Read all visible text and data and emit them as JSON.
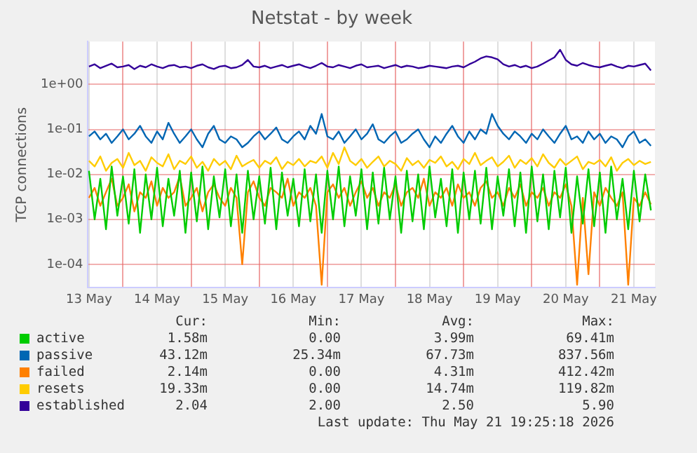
{
  "chart_data": {
    "type": "line",
    "title": "Netstat - by week",
    "ylabel": "TCP connections",
    "log": "y",
    "grid": true,
    "legend": "bottom",
    "marker": "none",
    "line_style": "solid",
    "xlim": [
      "--05-13T11:25",
      "--05-21T19:25"
    ],
    "xticks": [
      {
        "value": "--05-13T12:00",
        "label": "13 May"
      },
      {
        "value": "--05-14T00:00",
        "label": null
      },
      {
        "value": "--05-14T12:00",
        "label": "14 May"
      },
      {
        "value": "--05-15T00:00",
        "label": null
      },
      {
        "value": "--05-15T12:00",
        "label": "15 May"
      },
      {
        "value": "--05-16T00:00",
        "label": null
      },
      {
        "value": "--05-16T12:00",
        "label": "16 May"
      },
      {
        "value": "--05-17T00:00",
        "label": null
      },
      {
        "value": "--05-17T12:00",
        "label": "17 May"
      },
      {
        "value": "--05-18T00:00",
        "label": null
      },
      {
        "value": "--05-18T12:00",
        "label": "18 May"
      },
      {
        "value": "--05-19T00:00",
        "label": null
      },
      {
        "value": "--05-19T12:00",
        "label": "19 May"
      },
      {
        "value": "--05-20T00:00",
        "label": null
      },
      {
        "value": "--05-20T12:00",
        "label": "20 May"
      },
      {
        "value": "--05-21T00:00",
        "label": null
      },
      {
        "value": "--05-21T12:00",
        "label": "21 May"
      }
    ],
    "ylim": [
      3e-05,
      9
    ],
    "yticks": [
      {
        "value": 0.0001,
        "label": "1e-04"
      },
      {
        "value": 0.001,
        "label": "1e-03"
      },
      {
        "value": 0.01,
        "label": "1e-02"
      },
      {
        "value": 0.1,
        "label": "1e-01"
      },
      {
        "value": 1,
        "label": "1e+00"
      }
    ],
    "x": [
      "--05-13T12:00",
      "--05-13T14:00",
      "--05-13T16:00",
      "--05-13T18:00",
      "--05-13T20:00",
      "--05-13T22:00",
      "--05-14T00:00",
      "--05-14T02:00",
      "--05-14T04:00",
      "--05-14T06:00",
      "--05-14T08:00",
      "--05-14T10:00",
      "--05-14T12:00",
      "--05-14T14:00",
      "--05-14T16:00",
      "--05-14T18:00",
      "--05-14T20:00",
      "--05-14T22:00",
      "--05-15T00:00",
      "--05-15T02:00",
      "--05-15T04:00",
      "--05-15T06:00",
      "--05-15T08:00",
      "--05-15T10:00",
      "--05-15T12:00",
      "--05-15T14:00",
      "--05-15T16:00",
      "--05-15T18:00",
      "--05-15T20:00",
      "--05-15T22:00",
      "--05-16T00:00",
      "--05-16T02:00",
      "--05-16T04:00",
      "--05-16T06:00",
      "--05-16T08:00",
      "--05-16T10:00",
      "--05-16T12:00",
      "--05-16T14:00",
      "--05-16T16:00",
      "--05-16T18:00",
      "--05-16T20:00",
      "--05-16T22:00",
      "--05-17T00:00",
      "--05-17T02:00",
      "--05-17T04:00",
      "--05-17T06:00",
      "--05-17T08:00",
      "--05-17T10:00",
      "--05-17T12:00",
      "--05-17T14:00",
      "--05-17T16:00",
      "--05-17T18:00",
      "--05-17T20:00",
      "--05-17T22:00",
      "--05-18T00:00",
      "--05-18T02:00",
      "--05-18T04:00",
      "--05-18T06:00",
      "--05-18T08:00",
      "--05-18T10:00",
      "--05-18T12:00",
      "--05-18T14:00",
      "--05-18T16:00",
      "--05-18T18:00",
      "--05-18T20:00",
      "--05-18T22:00",
      "--05-19T00:00",
      "--05-19T02:00",
      "--05-19T04:00",
      "--05-19T06:00",
      "--05-19T08:00",
      "--05-19T10:00",
      "--05-19T12:00",
      "--05-19T14:00",
      "--05-19T16:00",
      "--05-19T18:00",
      "--05-19T20:00",
      "--05-19T22:00",
      "--05-20T00:00",
      "--05-20T02:00",
      "--05-20T04:00",
      "--05-20T06:00",
      "--05-20T08:00",
      "--05-20T10:00",
      "--05-20T12:00",
      "--05-20T14:00",
      "--05-20T16:00",
      "--05-20T18:00",
      "--05-20T20:00",
      "--05-20T22:00",
      "--05-21T00:00",
      "--05-21T02:00",
      "--05-21T04:00",
      "--05-21T06:00",
      "--05-21T08:00",
      "--05-21T10:00",
      "--05-21T12:00",
      "--05-21T14:00",
      "--05-21T16:00",
      "--05-21T18:00"
    ],
    "series": [
      {
        "name": "active",
        "color": "#00cc00",
        "values": [
          0.012,
          0.001,
          0.008,
          0.0006,
          0.015,
          0.0012,
          0.009,
          0.0008,
          0.013,
          0.0005,
          0.01,
          0.001,
          0.014,
          0.0007,
          0.008,
          0.0012,
          0.012,
          0.0005,
          0.011,
          0.0009,
          0.015,
          0.0006,
          0.009,
          0.0011,
          0.013,
          0.0007,
          0.01,
          0.0005,
          0.012,
          0.001,
          0.009,
          0.0008,
          0.014,
          0.0006,
          0.011,
          0.0012,
          0.008,
          0.0007,
          0.013,
          0.0009,
          0.01,
          0.0005,
          0.012,
          0.001,
          0.015,
          0.0007,
          0.009,
          0.0012,
          0.013,
          0.0006,
          0.011,
          0.0008,
          0.014,
          0.001,
          0.009,
          0.0005,
          0.012,
          0.0009,
          0.01,
          0.0006,
          0.015,
          0.0011,
          0.008,
          0.0007,
          0.013,
          0.0005,
          0.011,
          0.001,
          0.012,
          0.0008,
          0.014,
          0.0006,
          0.009,
          0.0012,
          0.013,
          0.0007,
          0.011,
          0.0005,
          0.015,
          0.0009,
          0.01,
          0.0006,
          0.012,
          0.0011,
          0.014,
          0.0005,
          0.009,
          0.0008,
          0.013,
          0.0007,
          0.011,
          0.0005,
          0.015,
          0.001,
          0.008,
          0.0006,
          0.012,
          0.0009,
          0.01,
          0.00158
        ]
      },
      {
        "name": "passive",
        "color": "#0066b3",
        "values": [
          0.07,
          0.09,
          0.06,
          0.08,
          0.05,
          0.07,
          0.1,
          0.06,
          0.08,
          0.12,
          0.07,
          0.05,
          0.09,
          0.06,
          0.14,
          0.08,
          0.05,
          0.07,
          0.1,
          0.06,
          0.04,
          0.08,
          0.12,
          0.06,
          0.05,
          0.07,
          0.06,
          0.04,
          0.05,
          0.07,
          0.09,
          0.06,
          0.08,
          0.11,
          0.06,
          0.05,
          0.07,
          0.09,
          0.06,
          0.12,
          0.08,
          0.22,
          0.07,
          0.06,
          0.09,
          0.05,
          0.07,
          0.1,
          0.06,
          0.08,
          0.13,
          0.06,
          0.05,
          0.07,
          0.09,
          0.05,
          0.06,
          0.08,
          0.1,
          0.06,
          0.04,
          0.07,
          0.05,
          0.08,
          0.12,
          0.07,
          0.05,
          0.09,
          0.06,
          0.1,
          0.08,
          0.22,
          0.12,
          0.08,
          0.06,
          0.09,
          0.07,
          0.05,
          0.08,
          0.06,
          0.1,
          0.07,
          0.05,
          0.08,
          0.12,
          0.06,
          0.07,
          0.05,
          0.09,
          0.06,
          0.08,
          0.05,
          0.07,
          0.06,
          0.04,
          0.07,
          0.09,
          0.05,
          0.06,
          0.043
        ]
      },
      {
        "name": "failed",
        "color": "#ff8000",
        "values": [
          0.003,
          0.005,
          0.002,
          0.004,
          0.008,
          0.002,
          0.003,
          0.006,
          0.0015,
          0.004,
          0.003,
          0.007,
          0.002,
          0.005,
          0.003,
          0.004,
          0.009,
          0.002,
          0.003,
          0.005,
          0.0015,
          0.004,
          0.006,
          0.003,
          0.002,
          0.005,
          0.003,
          0.0001,
          0.004,
          0.007,
          0.003,
          0.002,
          0.005,
          0.004,
          0.003,
          0.008,
          0.002,
          0.004,
          0.003,
          0.005,
          0.002,
          3.5e-05,
          0.004,
          0.006,
          0.003,
          0.005,
          0.002,
          0.004,
          0.007,
          0.003,
          0.005,
          0.002,
          0.004,
          0.003,
          0.006,
          0.002,
          0.004,
          0.005,
          0.003,
          0.008,
          0.002,
          0.004,
          0.003,
          0.005,
          0.002,
          0.006,
          0.003,
          0.004,
          0.002,
          0.005,
          0.007,
          0.003,
          0.004,
          0.002,
          0.005,
          0.003,
          0.006,
          0.002,
          0.004,
          0.003,
          0.005,
          0.002,
          0.004,
          0.003,
          0.006,
          0.002,
          3.5e-05,
          0.003,
          6e-05,
          0.004,
          0.002,
          0.005,
          0.003,
          0.002,
          0.004,
          3.5e-05,
          0.003,
          0.002,
          0.004,
          0.00214
        ]
      },
      {
        "name": "resets",
        "color": "#ffcc00",
        "values": [
          0.02,
          0.015,
          0.025,
          0.012,
          0.018,
          0.022,
          0.014,
          0.03,
          0.016,
          0.02,
          0.012,
          0.024,
          0.018,
          0.015,
          0.028,
          0.013,
          0.02,
          0.017,
          0.025,
          0.014,
          0.019,
          0.012,
          0.022,
          0.016,
          0.02,
          0.013,
          0.026,
          0.015,
          0.018,
          0.021,
          0.014,
          0.02,
          0.017,
          0.024,
          0.013,
          0.019,
          0.016,
          0.022,
          0.015,
          0.02,
          0.018,
          0.025,
          0.014,
          0.03,
          0.017,
          0.04,
          0.02,
          0.016,
          0.022,
          0.014,
          0.019,
          0.025,
          0.015,
          0.02,
          0.017,
          0.012,
          0.023,
          0.016,
          0.02,
          0.014,
          0.021,
          0.018,
          0.025,
          0.015,
          0.019,
          0.013,
          0.022,
          0.017,
          0.03,
          0.016,
          0.02,
          0.024,
          0.015,
          0.019,
          0.026,
          0.014,
          0.021,
          0.017,
          0.023,
          0.015,
          0.028,
          0.018,
          0.014,
          0.022,
          0.016,
          0.02,
          0.025,
          0.013,
          0.019,
          0.017,
          0.021,
          0.015,
          0.024,
          0.012,
          0.018,
          0.022,
          0.016,
          0.02,
          0.017,
          0.019
        ]
      },
      {
        "name": "established",
        "color": "#330099",
        "values": [
          2.5,
          2.8,
          2.3,
          2.6,
          2.9,
          2.4,
          2.5,
          2.7,
          2.2,
          2.6,
          2.4,
          2.8,
          2.5,
          2.3,
          2.6,
          2.7,
          2.4,
          2.5,
          2.3,
          2.6,
          2.8,
          2.4,
          2.2,
          2.5,
          2.6,
          2.3,
          2.4,
          2.7,
          3.5,
          2.5,
          2.4,
          2.6,
          2.3,
          2.5,
          2.7,
          2.4,
          2.6,
          2.8,
          2.5,
          2.3,
          2.6,
          3.0,
          2.5,
          2.4,
          2.7,
          2.5,
          2.3,
          2.6,
          2.8,
          2.4,
          2.5,
          2.6,
          2.3,
          2.5,
          2.7,
          2.4,
          2.6,
          2.5,
          2.3,
          2.4,
          2.6,
          2.5,
          2.4,
          2.3,
          2.5,
          2.6,
          2.4,
          2.8,
          3.2,
          3.8,
          4.2,
          4.0,
          3.6,
          2.8,
          2.5,
          2.7,
          2.4,
          2.6,
          2.3,
          2.5,
          2.9,
          3.4,
          4.0,
          5.9,
          3.5,
          2.8,
          2.6,
          3.0,
          2.7,
          2.5,
          2.4,
          2.6,
          2.8,
          2.5,
          2.3,
          2.6,
          2.5,
          2.7,
          2.9,
          2.04
        ]
      }
    ],
    "annotations": [
      "Cur:",
      "Min:",
      "Avg:",
      "Max:",
      "1.58m",
      "0.00",
      "3.99m",
      "69.41m",
      "43.12m",
      "25.34m",
      "67.73m",
      "837.56m",
      "2.14m",
      "0.00",
      "4.31m",
      "412.42m",
      "19.33m",
      "0.00",
      "14.74m",
      "119.82m",
      "2.04",
      "2.00",
      "2.50",
      "5.90",
      "Last update: Thu May 21 19:25:18 2026"
    ]
  }
}
